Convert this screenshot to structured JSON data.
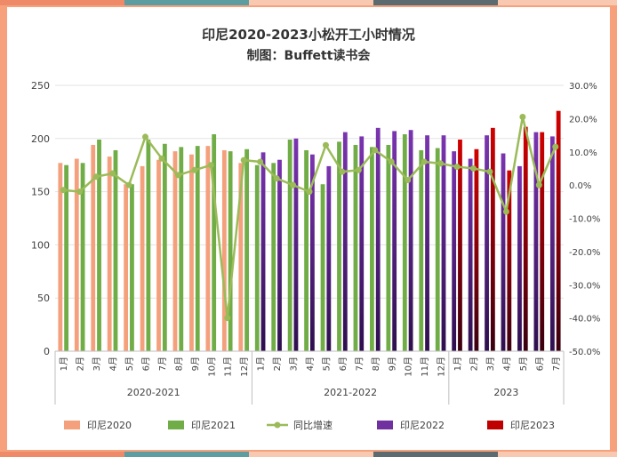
{
  "chart_data": {
    "type": "bar",
    "title": "印尼2020-2023小松开工小时情况",
    "subtitle": "制图：Buffett读书会",
    "months": [
      "1月",
      "2月",
      "3月",
      "4月",
      "5月",
      "6月",
      "7月",
      "8月",
      "9月",
      "10月",
      "11月",
      "12月"
    ],
    "groups": [
      {
        "label": "2020-2021",
        "months": 12
      },
      {
        "label": "2021-2022",
        "months": 12
      },
      {
        "label": "2023",
        "months": 7
      }
    ],
    "y_left": {
      "min": 0,
      "max": 250,
      "ticks": [
        "0",
        "50",
        "100",
        "150",
        "200",
        "250"
      ]
    },
    "y_right": {
      "min": -0.5,
      "max": 0.3,
      "ticks": [
        "30.0%",
        "20.0%",
        "10.0%",
        "0.0%",
        "-10.0%",
        "-20.0%",
        "-30.0%",
        "-40.0%",
        "-50.0%"
      ]
    },
    "grid": true,
    "legend_position": "bottom",
    "series": [
      {
        "name": "印尼2020",
        "color": "#f4a07c",
        "group": 0,
        "values": [
          177,
          181,
          194,
          183,
          157,
          174,
          180,
          188,
          185,
          193,
          189,
          177
        ]
      },
      {
        "name": "印尼2021",
        "color": "#70ad47",
        "group": 0,
        "values": [
          175,
          177,
          199,
          189,
          157,
          199,
          195,
          192,
          193,
          204,
          188,
          190
        ]
      },
      {
        "name": "印尼2021",
        "color": "#70ad47",
        "group": 1,
        "values": [
          175,
          177,
          199,
          189,
          157,
          197,
          194,
          192,
          194,
          204,
          189,
          191
        ]
      },
      {
        "name": "印尼2022",
        "color": "#7030a0",
        "group": 1,
        "values": [
          187,
          180,
          200,
          185,
          174,
          206,
          202,
          210,
          207,
          208,
          203,
          203
        ]
      },
      {
        "name": "印尼2022",
        "color": "#7030a0",
        "group": 2,
        "values": [
          188,
          181,
          203,
          186,
          174,
          206,
          202
        ]
      },
      {
        "name": "印尼2023",
        "color": "#c00000",
        "group": 2,
        "values": [
          199,
          190,
          210,
          170,
          211,
          206,
          226
        ]
      }
    ],
    "growth_series": {
      "name": "同比增速",
      "color": "#9bbb59",
      "values": [
        -0.015,
        -0.02,
        0.025,
        0.035,
        0.0,
        0.145,
        0.08,
        0.03,
        0.045,
        0.06,
        -0.4,
        0.075,
        0.07,
        0.02,
        0.0,
        -0.02,
        0.12,
        0.04,
        0.045,
        0.105,
        0.07,
        0.015,
        0.07,
        0.065,
        0.055,
        0.05,
        0.04,
        -0.08,
        0.205,
        0.0,
        0.115
      ]
    },
    "legend": [
      {
        "name": "印尼2020",
        "color": "#f4a07c",
        "kind": "bar"
      },
      {
        "name": "印尼2021",
        "color": "#70ad47",
        "kind": "bar"
      },
      {
        "name": "同比增速",
        "color": "#9bbb59",
        "kind": "line"
      },
      {
        "name": "印尼2022",
        "color": "#7030a0",
        "kind": "bar"
      },
      {
        "name": "印尼2023",
        "color": "#c00000",
        "kind": "bar"
      }
    ]
  }
}
